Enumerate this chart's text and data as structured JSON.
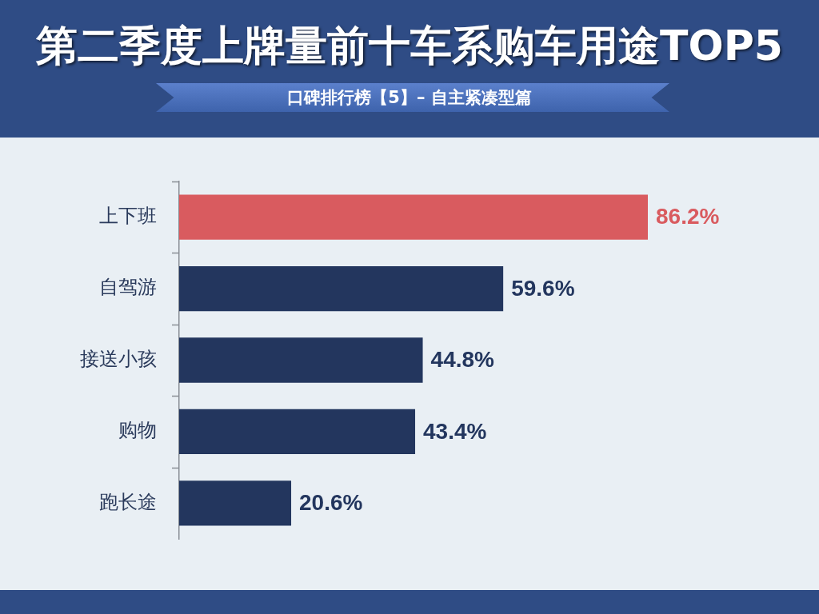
{
  "chart_data": {
    "type": "bar",
    "orientation": "horizontal",
    "title": "第二季度上牌量前十车系购车用途TOP5",
    "subtitle": "口碑排行榜【5】– 自主紧凑型篇",
    "categories": [
      "上下班",
      "自驾游",
      "接送小孩",
      "购物",
      "跑长途"
    ],
    "values": [
      86.2,
      59.6,
      44.8,
      43.4,
      20.6
    ],
    "value_labels": [
      "86.2%",
      "59.6%",
      "44.8%",
      "43.4%",
      "20.6%"
    ],
    "colors": [
      "#d95b5f",
      "#23365e",
      "#23365e",
      "#23365e",
      "#23365e"
    ]
  }
}
